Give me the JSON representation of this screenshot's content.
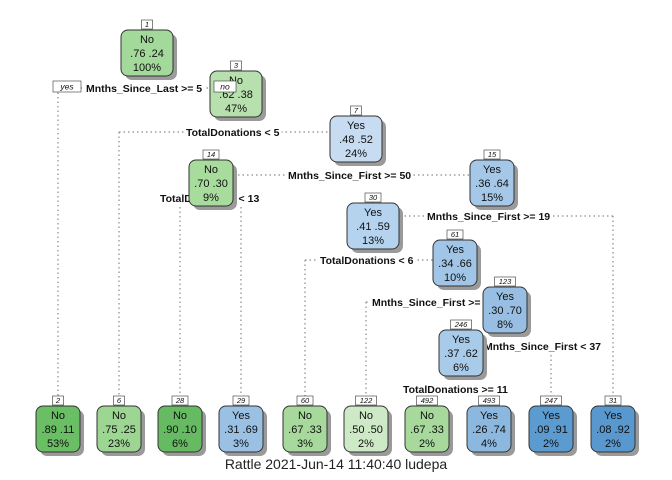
{
  "diagram": {
    "nodes": [
      {
        "id": "n1",
        "num": "1",
        "label": "No",
        "probs": ".76  .24",
        "pct": "100%",
        "color": "#a3d99a"
      },
      {
        "id": "n3",
        "num": "3",
        "label": "No",
        "probs": ".62  .38",
        "pct": "47%",
        "color": "#b8e0ae"
      },
      {
        "id": "n7",
        "num": "7",
        "label": "Yes",
        "probs": ".48  .52",
        "pct": "24%",
        "color": "#c7dbf1"
      },
      {
        "id": "n14",
        "num": "14",
        "label": "No",
        "probs": ".70  .30",
        "pct": "9%",
        "color": "#a8dc9d"
      },
      {
        "id": "n15",
        "num": "15",
        "label": "Yes",
        "probs": ".36  .64",
        "pct": "15%",
        "color": "#a5c8e8"
      },
      {
        "id": "n30",
        "num": "30",
        "label": "Yes",
        "probs": ".41  .59",
        "pct": "13%",
        "color": "#b5d3ee"
      },
      {
        "id": "n61",
        "num": "61",
        "label": "Yes",
        "probs": ".34  .66",
        "pct": "10%",
        "color": "#a0c5e6"
      },
      {
        "id": "n123",
        "num": "123",
        "label": "Yes",
        "probs": ".30  .70",
        "pct": "8%",
        "color": "#98bfe3"
      },
      {
        "id": "n246",
        "num": "246",
        "label": "Yes",
        "probs": ".37  .62",
        "pct": "6%",
        "color": "#a9cbea"
      },
      {
        "id": "n2",
        "num": "2",
        "label": "No",
        "probs": ".89  .11",
        "pct": "53%",
        "color": "#6abe64"
      },
      {
        "id": "n6",
        "num": "6",
        "label": "No",
        "probs": ".75  .25",
        "pct": "23%",
        "color": "#9dd592"
      },
      {
        "id": "n28",
        "num": "28",
        "label": "No",
        "probs": ".90  .10",
        "pct": "6%",
        "color": "#66bb62"
      },
      {
        "id": "n29",
        "num": "29",
        "label": "Yes",
        "probs": ".31  .69",
        "pct": "3%",
        "color": "#9ac1e4"
      },
      {
        "id": "n60",
        "num": "60",
        "label": "No",
        "probs": ".67  .33",
        "pct": "3%",
        "color": "#a6d99b"
      },
      {
        "id": "n122",
        "num": "122",
        "label": "No",
        "probs": ".50  .50",
        "pct": "2%",
        "color": "#cde9c5"
      },
      {
        "id": "n492",
        "num": "492",
        "label": "No",
        "probs": ".67  .33",
        "pct": "2%",
        "color": "#a6d99b"
      },
      {
        "id": "n493",
        "num": "493",
        "label": "Yes",
        "probs": ".26  .74",
        "pct": "4%",
        "color": "#8cb8e0"
      },
      {
        "id": "n247",
        "num": "247",
        "label": "Yes",
        "probs": ".09  .91",
        "pct": "2%",
        "color": "#5b9bd0"
      },
      {
        "id": "n31",
        "num": "31",
        "label": "Yes",
        "probs": ".08  .92",
        "pct": "2%",
        "color": "#5898ce"
      }
    ],
    "splits": [
      {
        "id": "s1",
        "text": "Mnths_Since_Last >= 5"
      },
      {
        "id": "s3",
        "text": "TotalDonations < 5"
      },
      {
        "id": "s7",
        "text": "Mnths_Since_First >= 50"
      },
      {
        "id": "s14",
        "text": "TotalDonations < 13"
      },
      {
        "id": "s15",
        "text": "Mnths_Since_First >= 19"
      },
      {
        "id": "s30",
        "text": "TotalDonations < 6"
      },
      {
        "id": "s61",
        "text": "Mnths_Since_First >= 32"
      },
      {
        "id": "s123",
        "text": "Mnths_Since_First < 37"
      },
      {
        "id": "s246",
        "text": "TotalDonations >= 11"
      }
    ],
    "root_branch_labels": {
      "left": "yes",
      "right": "no"
    }
  },
  "footer": "Rattle 2021-Jun-14 11:40:40 ludepa"
}
